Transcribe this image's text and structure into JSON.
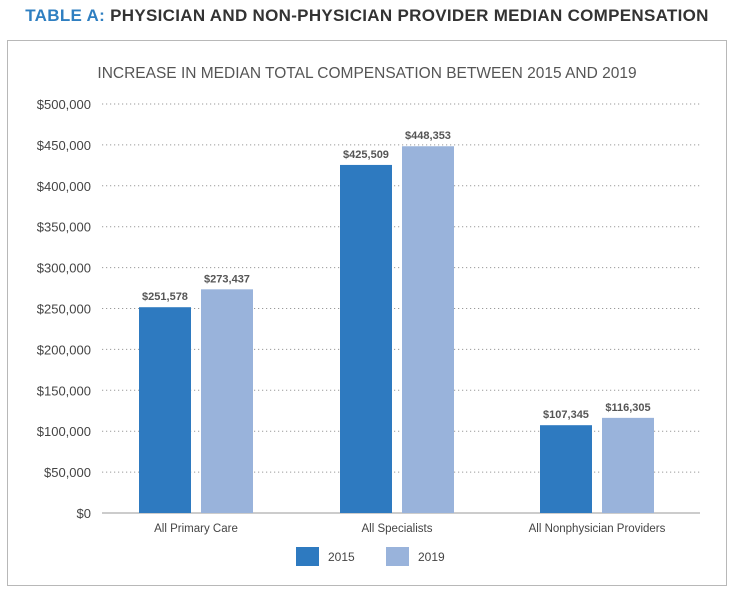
{
  "heading": {
    "lead": "TABLE A:",
    "rest": "PHYSICIAN AND NON-PHYSICIAN PROVIDER MEDIAN COMPENSATION"
  },
  "chart_data": {
    "type": "bar",
    "title": "INCREASE IN MEDIAN TOTAL COMPENSATION BETWEEN 2015 AND 2019",
    "categories": [
      "All Primary Care",
      "All Specialists",
      "All Nonphysician Providers"
    ],
    "series": [
      {
        "name": "2015",
        "color": "#2e7ac0",
        "values": [
          251578,
          425509,
          107345
        ],
        "labels": [
          "$251,578",
          "$425,509",
          "$107,345"
        ]
      },
      {
        "name": "2019",
        "color": "#99b3db",
        "values": [
          273437,
          448353,
          116305
        ],
        "labels": [
          "$273,437",
          "$448,353",
          "$116,305"
        ]
      }
    ],
    "ylim": [
      0,
      500000
    ],
    "yticks": [
      0,
      50000,
      100000,
      150000,
      200000,
      250000,
      300000,
      350000,
      400000,
      450000,
      500000
    ],
    "ytick_labels": [
      "$0",
      "$50,000",
      "$100,000",
      "$150,000",
      "$200,000",
      "$250,000",
      "$300,000",
      "$350,000",
      "$400,000",
      "$450,000",
      "$500,000"
    ],
    "grid": "horizontal-dotted",
    "legend": "bottom-center"
  }
}
